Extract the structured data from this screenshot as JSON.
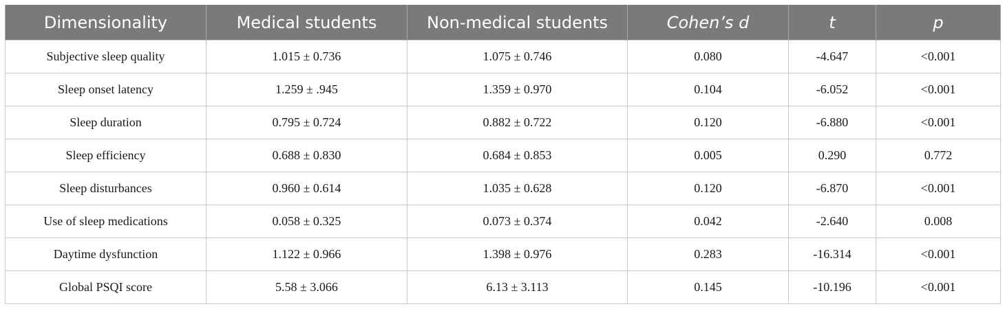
{
  "table": {
    "headers": [
      "Dimensionality",
      "Medical students",
      "Non-medical students",
      "Cohen’s d",
      "t",
      "p"
    ],
    "rows": [
      [
        "Subjective sleep quality",
        "1.015 ± 0.736",
        "1.075 ± 0.746",
        "0.080",
        "-4.647",
        "<0.001"
      ],
      [
        "Sleep onset latency",
        "1.259 ± .945",
        "1.359 ± 0.970",
        "0.104",
        "-6.052",
        "<0.001"
      ],
      [
        "Sleep duration",
        "0.795 ± 0.724",
        "0.882 ± 0.722",
        "0.120",
        "-6.880",
        "<0.001"
      ],
      [
        "Sleep efficiency",
        "0.688 ± 0.830",
        "0.684 ± 0.853",
        "0.005",
        "0.290",
        "0.772"
      ],
      [
        "Sleep disturbances",
        "0.960 ± 0.614",
        "1.035 ± 0.628",
        "0.120",
        "-6.870",
        "<0.001"
      ],
      [
        "Use of sleep medications",
        "0.058 ± 0.325",
        "0.073 ± 0.374",
        "0.042",
        "-2.640",
        "0.008"
      ],
      [
        "Daytime dysfunction",
        "1.122 ± 0.966",
        "1.398 ± 0.976",
        "0.283",
        "-16.314",
        "<0.001"
      ],
      [
        "Global PSQI score",
        "5.58 ± 3.066",
        "6.13 ± 3.113",
        "0.145",
        "-10.196",
        "<0.001"
      ]
    ]
  },
  "colors": {
    "header_bg": "#7a7a7a",
    "header_text": "#ffffff",
    "grid": "#c8c8c8"
  }
}
